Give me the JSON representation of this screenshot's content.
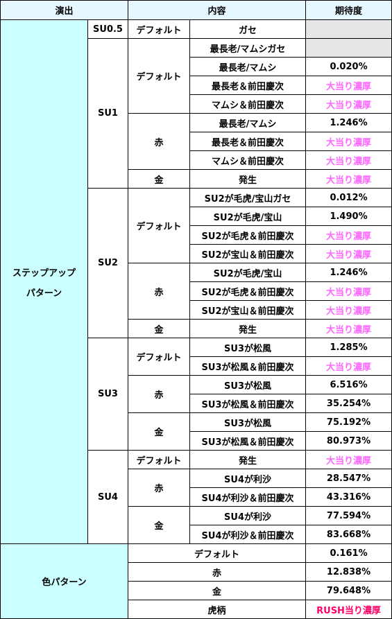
{
  "headers": {
    "col1": "演出",
    "col2": "内容",
    "col3": "期待度"
  },
  "colors": {
    "header_bg": "#e6f7ff",
    "category_bg": "#ccffff",
    "blank_bg": "#e6e6e6",
    "pink_text": "#ff66ff",
    "rush_text": "#ff0066"
  },
  "step": {
    "label_line1": "ステップアップ",
    "label_line2": "パターン",
    "su05": {
      "label": "SU0.5",
      "sub": "デフォルト",
      "content": "ガセ",
      "value": ""
    },
    "su1": {
      "label": "SU1",
      "default": {
        "label": "デフォルト",
        "rows": [
          {
            "content": "最長老/マムシガセ",
            "value": ""
          },
          {
            "content": "最長老/マムシ",
            "value": "0.020%"
          },
          {
            "content": "最長老＆前田慶次",
            "value": "大当り濃厚"
          },
          {
            "content": "マムシ＆前田慶次",
            "value": "大当り濃厚"
          }
        ]
      },
      "red": {
        "label": "赤",
        "rows": [
          {
            "content": "最長老/マムシ",
            "value": "1.246%"
          },
          {
            "content": "最長老＆前田慶次",
            "value": "大当り濃厚"
          },
          {
            "content": "マムシ＆前田慶次",
            "value": "大当り濃厚"
          }
        ]
      },
      "gold": {
        "label": "金",
        "rows": [
          {
            "content": "発生",
            "value": "大当り濃厚"
          }
        ]
      }
    },
    "su2": {
      "label": "SU2",
      "default": {
        "label": "デフォルト",
        "rows": [
          {
            "content": "SU2が毛虎/宝山ガセ",
            "value": "0.012%"
          },
          {
            "content": "SU2が毛虎/宝山",
            "value": "1.490%"
          },
          {
            "content": "SU2が毛虎＆前田慶次",
            "value": "大当り濃厚"
          },
          {
            "content": "SU2が宝山＆前田慶次",
            "value": "大当り濃厚"
          }
        ]
      },
      "red": {
        "label": "赤",
        "rows": [
          {
            "content": "SU2が毛虎/宝山",
            "value": "1.246%"
          },
          {
            "content": "SU2が毛虎＆前田慶次",
            "value": "大当り濃厚"
          },
          {
            "content": "SU2が宝山＆前田慶次",
            "value": "大当り濃厚"
          }
        ]
      },
      "gold": {
        "label": "金",
        "rows": [
          {
            "content": "発生",
            "value": "大当り濃厚"
          }
        ]
      }
    },
    "su3": {
      "label": "SU3",
      "default": {
        "label": "デフォルト",
        "rows": [
          {
            "content": "SU3が松風",
            "value": "1.285%"
          },
          {
            "content": "SU3が松風＆前田慶次",
            "value": "大当り濃厚"
          }
        ]
      },
      "red": {
        "label": "赤",
        "rows": [
          {
            "content": "SU3が松風",
            "value": "6.516%"
          },
          {
            "content": "SU3が松風＆前田慶次",
            "value": "35.254%"
          }
        ]
      },
      "gold": {
        "label": "金",
        "rows": [
          {
            "content": "SU3が松風",
            "value": "75.192%"
          },
          {
            "content": "SU3が松風＆前田慶次",
            "value": "80.973%"
          }
        ]
      }
    },
    "su4": {
      "label": "SU4",
      "default": {
        "label": "デフォルト",
        "rows": [
          {
            "content": "発生",
            "value": "大当り濃厚"
          }
        ]
      },
      "red": {
        "label": "赤",
        "rows": [
          {
            "content": "SU4が利沙",
            "value": "28.547%"
          },
          {
            "content": "SU4が利沙＆前田慶次",
            "value": "43.316%"
          }
        ]
      },
      "gold": {
        "label": "金",
        "rows": [
          {
            "content": "SU4が利沙",
            "value": "77.594%"
          },
          {
            "content": "SU4が利沙＆前田慶次",
            "value": "83.668%"
          }
        ]
      }
    }
  },
  "color_pattern": {
    "label": "色パターン",
    "rows": [
      {
        "content": "デフォルト",
        "value": "0.161%"
      },
      {
        "content": "赤",
        "value": "12.838%"
      },
      {
        "content": "金",
        "value": "79.648%"
      },
      {
        "content": "虎柄",
        "value": "RUSH当り濃厚"
      }
    ]
  }
}
